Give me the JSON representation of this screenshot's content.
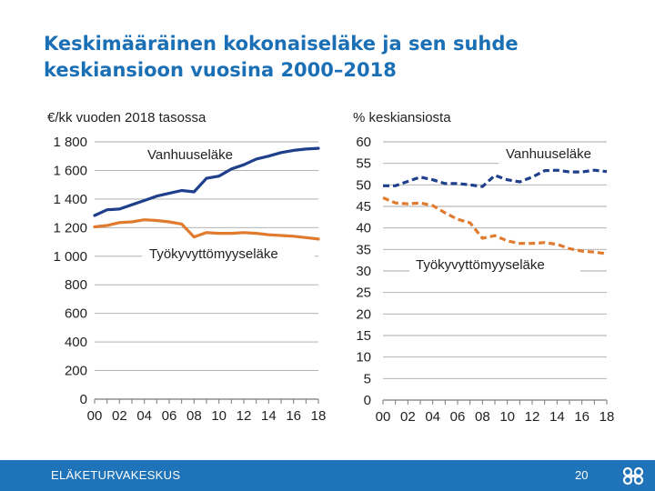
{
  "slide": {
    "title_line1": "Keskimääräinen kokonaiseläke ja sen suhde",
    "title_line2": "keskiansioon vuosina 2000–2018"
  },
  "footer": {
    "organization": "ELÄKETURVAKESKUS",
    "page_number": "20",
    "logo_icon": "etk-logo-icon"
  },
  "colors": {
    "accent_title": "#1a6fb5",
    "footer_bg": "#1e73b9",
    "series_old_age": "#1f3f8c",
    "series_disability": "#e07a2e",
    "gridline": "#9a9a9a"
  },
  "chart_data": [
    {
      "type": "line",
      "ylabel": "€/kk vuoden 2018 tasossa",
      "xlabel": "",
      "ylim": [
        0,
        1800
      ],
      "yticks": [
        0,
        200,
        400,
        600,
        800,
        1000,
        1200,
        1400,
        1600,
        1800
      ],
      "ytick_labels": [
        "0",
        "200",
        "400",
        "600",
        "800",
        "1 000",
        "1 200",
        "1 400",
        "1 600",
        "1 800"
      ],
      "x": [
        2000,
        2001,
        2002,
        2003,
        2004,
        2005,
        2006,
        2007,
        2008,
        2009,
        2010,
        2011,
        2012,
        2013,
        2014,
        2015,
        2016,
        2017,
        2018
      ],
      "xtick_values": [
        2000,
        2002,
        2004,
        2006,
        2008,
        2010,
        2012,
        2014,
        2016,
        2018
      ],
      "xtick_labels": [
        "00",
        "02",
        "04",
        "06",
        "08",
        "10",
        "12",
        "14",
        "16",
        "18"
      ],
      "grid": true,
      "series": [
        {
          "name": "Vanhuuseläke",
          "style": "solid",
          "color": "#1f3f8c",
          "values": [
            1285,
            1325,
            1330,
            1360,
            1390,
            1420,
            1440,
            1460,
            1450,
            1545,
            1560,
            1610,
            1640,
            1680,
            1700,
            1725,
            1740,
            1750,
            1755
          ]
        },
        {
          "name": "Työkyvyttömyyseläke",
          "style": "solid",
          "color": "#e07a2e",
          "values": [
            1205,
            1215,
            1235,
            1240,
            1255,
            1250,
            1240,
            1225,
            1135,
            1165,
            1160,
            1160,
            1165,
            1160,
            1150,
            1145,
            1140,
            1130,
            1120
          ]
        }
      ]
    },
    {
      "type": "line",
      "ylabel": "% keskiansiosta",
      "xlabel": "",
      "ylim": [
        0,
        60
      ],
      "yticks": [
        0,
        5,
        10,
        15,
        20,
        25,
        30,
        35,
        40,
        45,
        50,
        55,
        60
      ],
      "ytick_labels": [
        "0",
        "5",
        "10",
        "15",
        "20",
        "25",
        "30",
        "35",
        "40",
        "45",
        "50",
        "55",
        "60"
      ],
      "x": [
        2000,
        2001,
        2002,
        2003,
        2004,
        2005,
        2006,
        2007,
        2008,
        2009,
        2010,
        2011,
        2012,
        2013,
        2014,
        2015,
        2016,
        2017,
        2018
      ],
      "xtick_values": [
        2000,
        2002,
        2004,
        2006,
        2008,
        2010,
        2012,
        2014,
        2016,
        2018
      ],
      "xtick_labels": [
        "00",
        "02",
        "04",
        "06",
        "08",
        "10",
        "12",
        "14",
        "16",
        "18"
      ],
      "grid": true,
      "series": [
        {
          "name": "Vanhuuseläke",
          "style": "dashed",
          "color": "#1f3f8c",
          "values": [
            49.8,
            49.8,
            50.8,
            51.8,
            51.2,
            50.3,
            50.3,
            50.0,
            49.6,
            52.2,
            51.2,
            50.7,
            51.8,
            53.3,
            53.4,
            53.0,
            53.0,
            53.4,
            53.1
          ]
        },
        {
          "name": "Työkyvyttömyyseläke",
          "style": "dashed",
          "color": "#e07a2e",
          "values": [
            47.0,
            45.8,
            45.6,
            45.8,
            45.2,
            43.5,
            42.0,
            41.2,
            37.6,
            38.2,
            37.0,
            36.4,
            36.4,
            36.6,
            36.2,
            35.2,
            34.6,
            34.4,
            34.0
          ]
        }
      ]
    }
  ]
}
